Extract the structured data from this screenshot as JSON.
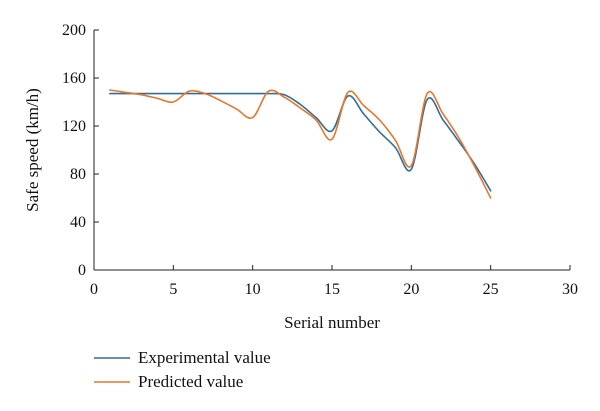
{
  "chart_data": {
    "type": "line",
    "title": "",
    "xlabel": "Serial number",
    "ylabel": "Safe speed (km/h)",
    "xlim": [
      0,
      30
    ],
    "ylim": [
      0,
      200
    ],
    "xticks": [
      0,
      5,
      10,
      15,
      20,
      25,
      30
    ],
    "yticks": [
      0,
      40,
      80,
      120,
      160,
      200
    ],
    "grid": false,
    "legend_position": "bottom-left",
    "series": [
      {
        "name": "Experimental value",
        "color": "#2f6f9a",
        "x": [
          1,
          2,
          3,
          4,
          5,
          6,
          7,
          8,
          9,
          10,
          11,
          12,
          13,
          14,
          15,
          16,
          17,
          18,
          19,
          20,
          21,
          22,
          23,
          24,
          25
        ],
        "y": [
          147,
          147,
          147,
          147,
          147,
          147,
          147,
          147,
          147,
          147,
          147,
          146,
          138,
          127,
          116,
          145,
          130,
          115,
          102,
          84,
          142,
          125,
          107,
          88,
          66
        ]
      },
      {
        "name": "Predicted value",
        "color": "#e8762b",
        "x": [
          1,
          2,
          3,
          4,
          5,
          6,
          7,
          8,
          9,
          10,
          11,
          12,
          13,
          14,
          15,
          16,
          17,
          18,
          19,
          20,
          21,
          22,
          23,
          24,
          25
        ],
        "y": [
          150,
          148,
          146,
          143,
          140,
          149,
          147,
          141,
          134,
          127,
          149,
          144,
          135,
          125,
          109,
          148,
          137,
          125,
          108,
          87,
          147,
          130,
          110,
          86,
          60
        ]
      }
    ]
  }
}
